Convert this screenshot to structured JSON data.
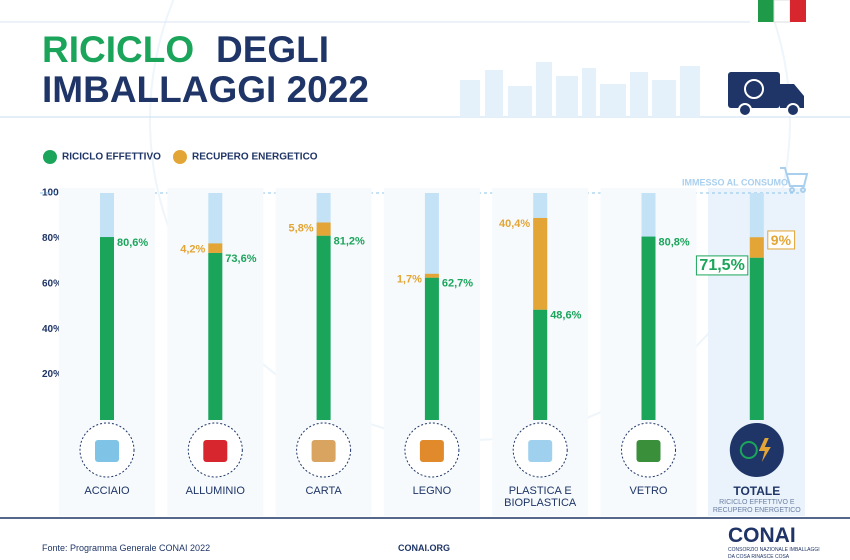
{
  "chart_data": {
    "type": "bar",
    "stacked": true,
    "title_parts": [
      "RICICLO",
      "DEGLI",
      "IMBALLAGGI 2022"
    ],
    "annotation": "IMMESSO AL CONSUMO",
    "categories": [
      "ACCIAIO",
      "ALLUMINIO",
      "CARTA",
      "LEGNO",
      "PLASTICA E BIOPLASTICA",
      "VETRO",
      "TOTALE"
    ],
    "category_note": "RICICLO EFFETTIVO E RECUPERO ENERGETICO",
    "series": [
      {
        "name": "RICICLO EFFETTIVO",
        "color": "#1ba55b",
        "values": [
          80.6,
          73.6,
          81.2,
          62.7,
          48.6,
          80.8,
          71.5
        ],
        "value_labels": [
          "80,6%",
          "73,6%",
          "81,2%",
          "62,7%",
          "48,6%",
          "80,8%",
          "71,5%"
        ]
      },
      {
        "name": "RECUPERO ENERGETICO",
        "color": "#e3a535",
        "values": [
          null,
          4.2,
          5.8,
          1.7,
          40.4,
          null,
          9
        ],
        "value_labels": [
          null,
          "4,2%",
          "5,8%",
          "1,7%",
          "40,4%",
          null,
          "9%"
        ]
      }
    ],
    "ylim": [
      0,
      100
    ],
    "yticks": [
      {
        "value": 100,
        "label": "100%"
      },
      {
        "value": 80,
        "label": "80%"
      },
      {
        "value": 60,
        "label": "60%"
      },
      {
        "value": 40,
        "label": "40%"
      },
      {
        "value": 20,
        "label": "20%"
      }
    ],
    "background_color": "#c3e2f6",
    "source": "Fonte: Programma Generale CONAI 2022",
    "website": "CONAI.ORG",
    "logo": "CONAI",
    "logo_subtitle": "CONSORZIO NAZIONALE IMBALLAGGI",
    "logo_motto": "DA COSA RINASCE COSA"
  }
}
